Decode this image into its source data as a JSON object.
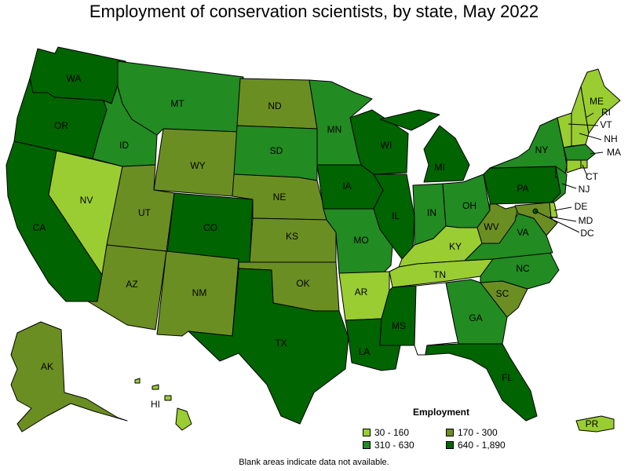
{
  "title": "Employment of conservation scientists, by state, May 2022",
  "colors": {
    "c1": "#9acd32",
    "c2": "#6b8e23",
    "c3": "#228b22",
    "c4": "#006400",
    "blank": "#ffffff"
  },
  "legend": {
    "title": "Employment",
    "items": [
      {
        "label": "30 - 160",
        "color": "c1"
      },
      {
        "label": "170 - 300",
        "color": "c2"
      },
      {
        "label": "310 - 630",
        "color": "c3"
      },
      {
        "label": "640 - 1,890",
        "color": "c4"
      }
    ]
  },
  "states": {
    "WA": {
      "label": "WA",
      "color": "c4"
    },
    "OR": {
      "label": "OR",
      "color": "c4"
    },
    "CA": {
      "label": "CA",
      "color": "c4"
    },
    "ID": {
      "label": "ID",
      "color": "c3"
    },
    "NV": {
      "label": "NV",
      "color": "c1"
    },
    "MT": {
      "label": "MT",
      "color": "c3"
    },
    "WY": {
      "label": "WY",
      "color": "c2"
    },
    "UT": {
      "label": "UT",
      "color": "c2"
    },
    "AZ": {
      "label": "AZ",
      "color": "c2"
    },
    "CO": {
      "label": "CO",
      "color": "c4"
    },
    "NM": {
      "label": "NM",
      "color": "c2"
    },
    "ND": {
      "label": "ND",
      "color": "c2"
    },
    "SD": {
      "label": "SD",
      "color": "c3"
    },
    "NE": {
      "label": "NE",
      "color": "c2"
    },
    "KS": {
      "label": "KS",
      "color": "c2"
    },
    "OK": {
      "label": "OK",
      "color": "c2"
    },
    "TX": {
      "label": "TX",
      "color": "c4"
    },
    "MN": {
      "label": "MN",
      "color": "c3"
    },
    "IA": {
      "label": "IA",
      "color": "c4"
    },
    "MO": {
      "label": "MO",
      "color": "c3"
    },
    "AR": {
      "label": "AR",
      "color": "c1"
    },
    "LA": {
      "label": "LA",
      "color": "c4"
    },
    "WI": {
      "label": "WI",
      "color": "c4"
    },
    "IL": {
      "label": "IL",
      "color": "c4"
    },
    "MI": {
      "label": "MI",
      "color": "c4"
    },
    "IN": {
      "label": "IN",
      "color": "c3"
    },
    "OH": {
      "label": "OH",
      "color": "c3"
    },
    "KY": {
      "label": "KY",
      "color": "c1"
    },
    "TN": {
      "label": "TN",
      "color": "c1"
    },
    "MS": {
      "label": "MS",
      "color": "c4"
    },
    "AL": {
      "label": "",
      "color": "blank"
    },
    "GA": {
      "label": "GA",
      "color": "c3"
    },
    "FL": {
      "label": "FL",
      "color": "c4"
    },
    "SC": {
      "label": "SC",
      "color": "c2"
    },
    "NC": {
      "label": "NC",
      "color": "c3"
    },
    "VA": {
      "label": "VA",
      "color": "c3"
    },
    "WV": {
      "label": "WV",
      "color": "c2"
    },
    "PA": {
      "label": "PA",
      "color": "c4"
    },
    "NY": {
      "label": "NY",
      "color": "c3"
    },
    "ME": {
      "label": "ME",
      "color": "c1"
    },
    "VT": {
      "label": "VT",
      "color": "c1"
    },
    "NH": {
      "label": "NH",
      "color": "c1"
    },
    "MA": {
      "label": "MA",
      "color": "c3"
    },
    "RI": {
      "label": "RI",
      "color": "c1"
    },
    "CT": {
      "label": "CT",
      "color": "c1"
    },
    "NJ": {
      "label": "NJ",
      "color": "c3"
    },
    "DE": {
      "label": "DE",
      "color": "c1"
    },
    "MD": {
      "label": "MD",
      "color": "c2"
    },
    "DC": {
      "label": "DC",
      "color": "c4"
    },
    "AK": {
      "label": "AK",
      "color": "c2"
    },
    "HI": {
      "label": "HI",
      "color": "c1"
    },
    "PR": {
      "label": "PR",
      "color": "c1"
    }
  },
  "note": "Blank areas indicate data not available."
}
